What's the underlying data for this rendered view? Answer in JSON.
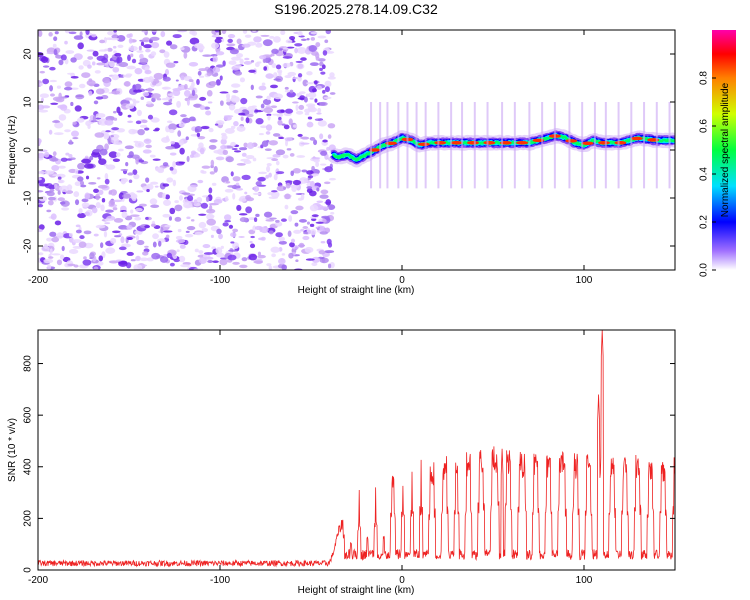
{
  "title": "S196.2025.278.14.09.C32",
  "chart_data": [
    {
      "type": "heatmap",
      "panel": "top",
      "title": "S196.2025.278.14.09.C32",
      "xlabel": "Height of straight line (km)",
      "ylabel": "Frequency (Hz)",
      "xlim": [
        -200,
        150
      ],
      "ylim": [
        -25,
        25
      ],
      "x_ticks": [
        -200,
        -100,
        0,
        100
      ],
      "x_tick_labels": [
        "-200",
        "-100",
        "0",
        "100"
      ],
      "y_ticks": [
        -20,
        -10,
        0,
        10,
        20
      ],
      "y_tick_labels": [
        "-20",
        "-10",
        "0",
        "10",
        "20"
      ],
      "noise_region_x": [
        -200,
        -38
      ],
      "ridge": {
        "x": [
          -38,
          -35,
          -30,
          -25,
          -20,
          -15,
          -10,
          -5,
          0,
          5,
          10,
          15,
          20,
          30,
          40,
          50,
          60,
          70,
          80,
          85,
          90,
          95,
          100,
          105,
          110,
          120,
          130,
          140,
          150
        ],
        "freq": [
          -1,
          -1.5,
          -1,
          -2,
          -1,
          0,
          1,
          1.5,
          2.5,
          2,
          1,
          1.5,
          1.5,
          1.5,
          1.5,
          1.5,
          1.5,
          1.5,
          2.5,
          3,
          2.5,
          1.5,
          1,
          2,
          1.5,
          1.5,
          2.5,
          2,
          2
        ]
      },
      "colorbar": {
        "label": "Normalized spectral amplitude",
        "ticks": [
          0.0,
          0.2,
          0.4,
          0.6,
          0.8
        ],
        "tick_labels": [
          "0.0",
          "0.2",
          "0.4",
          "0.6",
          "0.8"
        ],
        "range": [
          0,
          1
        ],
        "colors": [
          "#ffffff",
          "#8800ff",
          "#0000ff",
          "#00ffff",
          "#00ff00",
          "#ffff00",
          "#ff0000",
          "#ff00aa"
        ]
      }
    },
    {
      "type": "line",
      "panel": "bottom",
      "xlabel": "Height of straight line (km)",
      "ylabel": "SNR (10 * v/v)",
      "xlim": [
        -200,
        150
      ],
      "ylim": [
        0,
        930
      ],
      "x_ticks": [
        -200,
        -100,
        0,
        100
      ],
      "x_tick_labels": [
        "-200",
        "-100",
        "0",
        "100"
      ],
      "y_ticks": [
        0,
        200,
        400,
        600,
        800
      ],
      "y_tick_labels": [
        "0",
        "200",
        "400",
        "600",
        "800"
      ],
      "color": "#ee2222",
      "envelope": {
        "x": [
          -200,
          -40,
          -38,
          -35,
          -32,
          -30,
          -28,
          -25,
          -20,
          -15,
          -10,
          -5,
          0,
          5,
          10,
          15,
          20,
          30,
          40,
          50,
          60,
          70,
          80,
          90,
          100,
          110,
          120,
          130,
          140,
          150
        ],
        "y": [
          25,
          25,
          60,
          150,
          200,
          230,
          250,
          280,
          310,
          300,
          330,
          360,
          380,
          370,
          400,
          380,
          390,
          420,
          430,
          440,
          420,
          420,
          410,
          420,
          410,
          400,
          400,
          410,
          400,
          400
        ]
      },
      "dips": [
        -30,
        -26,
        -21,
        -17,
        -12,
        -8,
        -2,
        3,
        8,
        13,
        20,
        27,
        33,
        40,
        47,
        55,
        62,
        70,
        77,
        84,
        92,
        99,
        106,
        112,
        119,
        126,
        133,
        140,
        147
      ],
      "spikes": [
        {
          "x": 110,
          "y": 930
        },
        {
          "x": 108,
          "y": 680
        },
        {
          "x": 55,
          "y": 470
        }
      ]
    }
  ]
}
